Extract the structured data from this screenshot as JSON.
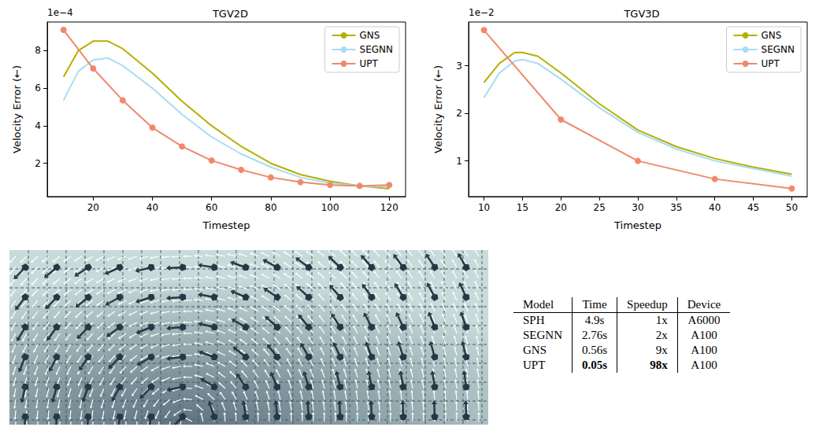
{
  "chart_data": [
    {
      "type": "line",
      "title": "TGV2D",
      "annotation": "1e−4",
      "x_label": "Timestep",
      "y_label": "Velocity Error (←)",
      "xlim": [
        4.5,
        125.5
      ],
      "xticks": [
        20,
        40,
        60,
        80,
        100,
        120
      ],
      "ylim": [
        0.23,
        9.52
      ],
      "yticks": [
        2,
        4,
        6,
        8
      ],
      "grid": false,
      "legend": "upper right",
      "series": [
        {
          "name": "GNS",
          "color": "#b5b000",
          "marker": "none",
          "x": [
            10,
            15,
            20,
            25,
            30,
            40,
            50,
            60,
            70,
            80,
            90,
            100,
            110,
            120
          ],
          "values": [
            6.6,
            8.0,
            8.5,
            8.5,
            8.1,
            6.8,
            5.3,
            4.0,
            2.9,
            2.0,
            1.4,
            1.05,
            0.8,
            0.65
          ]
        },
        {
          "name": "SEGNN",
          "color": "#a8dcf2",
          "marker": "none",
          "x": [
            10,
            15,
            20,
            25,
            30,
            40,
            50,
            60,
            70,
            80,
            90,
            100,
            110,
            120
          ],
          "values": [
            5.35,
            6.9,
            7.5,
            7.6,
            7.2,
            6.0,
            4.6,
            3.4,
            2.5,
            1.8,
            1.25,
            0.95,
            0.8,
            0.75
          ]
        },
        {
          "name": "UPT",
          "color": "#f0896b",
          "marker": "circle",
          "x": [
            10,
            20,
            30,
            40,
            50,
            60,
            70,
            80,
            90,
            100,
            110,
            120
          ],
          "values": [
            9.1,
            7.05,
            5.35,
            3.9,
            2.9,
            2.15,
            1.65,
            1.25,
            1.0,
            0.85,
            0.8,
            0.85
          ]
        }
      ]
    },
    {
      "type": "line",
      "title": "TGV3D",
      "annotation": "1e−2",
      "x_label": "Timestep",
      "y_label": "Velocity Error (←)",
      "xlim": [
        8,
        52
      ],
      "xticks": [
        10,
        15,
        20,
        25,
        30,
        35,
        40,
        45,
        50
      ],
      "ylim": [
        0.25,
        3.92
      ],
      "yticks": [
        1,
        2,
        3
      ],
      "grid": false,
      "legend": "upper right",
      "series": [
        {
          "name": "GNS",
          "color": "#b5b000",
          "marker": "none",
          "x": [
            10,
            12,
            14,
            15,
            17,
            20,
            25,
            30,
            35,
            40,
            45,
            50
          ],
          "values": [
            2.65,
            3.05,
            3.28,
            3.28,
            3.2,
            2.85,
            2.2,
            1.65,
            1.3,
            1.05,
            0.87,
            0.72
          ]
        },
        {
          "name": "SEGNN",
          "color": "#a8dcf2",
          "marker": "none",
          "x": [
            10,
            12,
            14,
            15,
            17,
            20,
            25,
            30,
            35,
            40,
            45,
            50
          ],
          "values": [
            2.33,
            2.85,
            3.1,
            3.13,
            3.05,
            2.72,
            2.12,
            1.6,
            1.25,
            1.0,
            0.84,
            0.68
          ]
        },
        {
          "name": "UPT",
          "color": "#f0896b",
          "marker": "circle",
          "x": [
            10,
            20,
            30,
            40,
            50
          ],
          "values": [
            3.75,
            1.87,
            1.0,
            0.62,
            0.42
          ]
        }
      ]
    }
  ],
  "table": {
    "columns": [
      "Model",
      "Time",
      "Speedup",
      "Device"
    ],
    "rows": [
      [
        "SPH",
        "4.9s",
        "1x",
        "A6000"
      ],
      [
        "SEGNN",
        "2.76s",
        "2x",
        "A100"
      ],
      [
        "GNS",
        "0.56s",
        "9x",
        "A100"
      ],
      [
        "UPT",
        {
          "text": "0.05s",
          "bold": true
        },
        {
          "text": "98x",
          "bold": true
        },
        "A100"
      ]
    ]
  }
}
